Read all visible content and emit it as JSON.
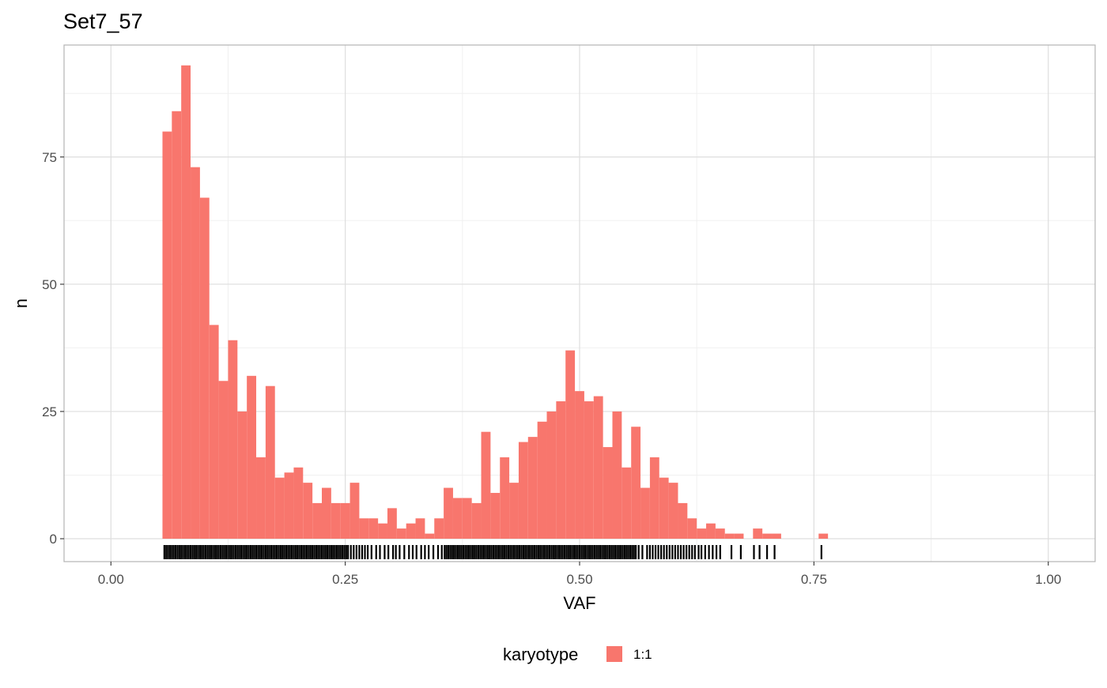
{
  "chart_data": {
    "type": "bar",
    "title": "Set7_57",
    "xlabel": "VAF",
    "ylabel": "n",
    "xlim": [
      -0.05,
      1.05
    ],
    "ylim": [
      -4.5,
      97
    ],
    "x_ticks": [
      {
        "value": 0,
        "label": "0.00"
      },
      {
        "value": 0.25,
        "label": "0.25"
      },
      {
        "value": 0.5,
        "label": "0.50"
      },
      {
        "value": 0.75,
        "label": "0.75"
      },
      {
        "value": 1,
        "label": "1.00"
      }
    ],
    "y_ticks": [
      {
        "value": 0,
        "label": "0"
      },
      {
        "value": 25,
        "label": "25"
      },
      {
        "value": 50,
        "label": "50"
      },
      {
        "value": 75,
        "label": "75"
      }
    ],
    "grid": true,
    "legend": {
      "position": "bottom",
      "title": "karyotype",
      "entries": [
        {
          "label": "1:1",
          "color": "#F8766D"
        }
      ]
    },
    "bin_width": 0.01,
    "series": [
      {
        "color": "#F8766D",
        "x": [
          0.06,
          0.07,
          0.08,
          0.09,
          0.1,
          0.11,
          0.12,
          0.13,
          0.14,
          0.15,
          0.16,
          0.17,
          0.18,
          0.19,
          0.2,
          0.21,
          0.22,
          0.23,
          0.24,
          0.25,
          0.26,
          0.27,
          0.28,
          0.29,
          0.3,
          0.31,
          0.32,
          0.33,
          0.34,
          0.35,
          0.36,
          0.37,
          0.38,
          0.39,
          0.4,
          0.41,
          0.42,
          0.43,
          0.44,
          0.45,
          0.46,
          0.47,
          0.48,
          0.49,
          0.5,
          0.51,
          0.52,
          0.53,
          0.54,
          0.55,
          0.56,
          0.57,
          0.58,
          0.59,
          0.6,
          0.61,
          0.62,
          0.63,
          0.64,
          0.65,
          0.66,
          0.67,
          0.68,
          0.69,
          0.7,
          0.71,
          0.76
        ],
        "values": [
          80,
          84,
          93,
          73,
          67,
          42,
          31,
          39,
          25,
          32,
          16,
          30,
          12,
          13,
          14,
          11,
          7,
          10,
          7,
          7,
          11,
          4,
          4,
          3,
          6,
          2,
          3,
          4,
          1,
          4,
          10,
          8,
          8,
          7,
          21,
          9,
          16,
          11,
          19,
          20,
          23,
          25,
          27,
          37,
          29,
          27,
          28,
          18,
          25,
          14,
          22,
          10,
          16,
          12,
          11,
          7,
          4,
          2,
          3,
          2,
          1,
          1,
          0,
          2,
          1,
          1,
          1
        ]
      }
    ],
    "rug": {
      "color": "#000000",
      "x": [
        0.057,
        0.059,
        0.061,
        0.063,
        0.065,
        0.067,
        0.069,
        0.071,
        0.073,
        0.075,
        0.077,
        0.079,
        0.081,
        0.083,
        0.085,
        0.087,
        0.089,
        0.091,
        0.093,
        0.095,
        0.097,
        0.099,
        0.101,
        0.103,
        0.105,
        0.107,
        0.109,
        0.111,
        0.113,
        0.115,
        0.117,
        0.119,
        0.121,
        0.123,
        0.125,
        0.127,
        0.129,
        0.131,
        0.133,
        0.135,
        0.137,
        0.139,
        0.141,
        0.143,
        0.145,
        0.147,
        0.149,
        0.151,
        0.153,
        0.155,
        0.157,
        0.159,
        0.161,
        0.163,
        0.165,
        0.167,
        0.169,
        0.171,
        0.173,
        0.175,
        0.177,
        0.179,
        0.181,
        0.183,
        0.185,
        0.187,
        0.189,
        0.191,
        0.193,
        0.195,
        0.197,
        0.199,
        0.201,
        0.203,
        0.205,
        0.207,
        0.209,
        0.211,
        0.213,
        0.215,
        0.217,
        0.219,
        0.221,
        0.223,
        0.225,
        0.227,
        0.229,
        0.231,
        0.233,
        0.235,
        0.237,
        0.239,
        0.241,
        0.243,
        0.245,
        0.247,
        0.249,
        0.251,
        0.253,
        0.256,
        0.259,
        0.262,
        0.265,
        0.268,
        0.271,
        0.274,
        0.278,
        0.283,
        0.287,
        0.292,
        0.296,
        0.301,
        0.304,
        0.308,
        0.313,
        0.318,
        0.322,
        0.326,
        0.331,
        0.335,
        0.339,
        0.344,
        0.349,
        0.353,
        0.356,
        0.358,
        0.36,
        0.362,
        0.364,
        0.366,
        0.368,
        0.37,
        0.372,
        0.374,
        0.376,
        0.378,
        0.38,
        0.382,
        0.384,
        0.386,
        0.388,
        0.39,
        0.392,
        0.394,
        0.396,
        0.398,
        0.4,
        0.402,
        0.404,
        0.406,
        0.408,
        0.41,
        0.412,
        0.414,
        0.416,
        0.418,
        0.42,
        0.422,
        0.424,
        0.426,
        0.428,
        0.43,
        0.432,
        0.434,
        0.436,
        0.438,
        0.44,
        0.442,
        0.444,
        0.446,
        0.448,
        0.45,
        0.452,
        0.454,
        0.456,
        0.458,
        0.46,
        0.462,
        0.464,
        0.466,
        0.468,
        0.47,
        0.472,
        0.474,
        0.476,
        0.478,
        0.48,
        0.482,
        0.484,
        0.486,
        0.488,
        0.49,
        0.492,
        0.494,
        0.496,
        0.498,
        0.5,
        0.502,
        0.504,
        0.506,
        0.508,
        0.51,
        0.512,
        0.514,
        0.516,
        0.518,
        0.52,
        0.522,
        0.524,
        0.526,
        0.528,
        0.53,
        0.532,
        0.534,
        0.536,
        0.538,
        0.54,
        0.542,
        0.544,
        0.546,
        0.548,
        0.55,
        0.552,
        0.554,
        0.556,
        0.558,
        0.56,
        0.563,
        0.567,
        0.572,
        0.575,
        0.578,
        0.581,
        0.584,
        0.587,
        0.59,
        0.593,
        0.596,
        0.599,
        0.602,
        0.605,
        0.608,
        0.611,
        0.614,
        0.617,
        0.62,
        0.623,
        0.627,
        0.63,
        0.634,
        0.638,
        0.642,
        0.646,
        0.65,
        0.662,
        0.672,
        0.686,
        0.692,
        0.7,
        0.708,
        0.758
      ]
    }
  }
}
